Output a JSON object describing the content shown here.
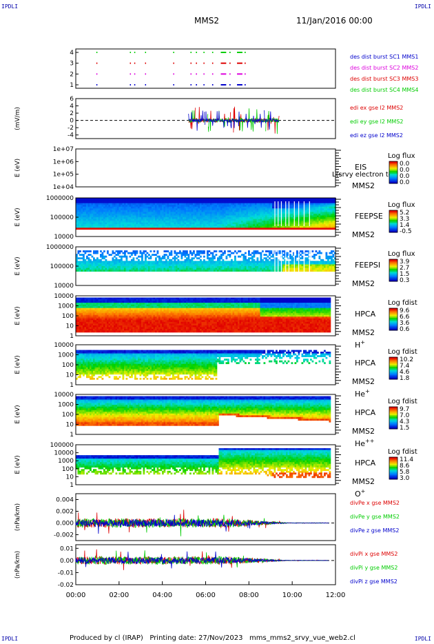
{
  "header": {
    "left_tag": "IPDLI",
    "right_tag": "IPDLI",
    "mission": "MMS2",
    "date": "11/Jan/2016 00:00"
  },
  "footer": {
    "text": "Produced by cl (IRAP)   Printing date: 27/Nov/2023   mms_mms2_srvy_vue_web2.cl",
    "left_tag": "IPDLI",
    "right_tag": "IPDLI"
  },
  "colors": {
    "red": "#dd0000",
    "green": "#00cc00",
    "blue": "#0000cc",
    "magenta": "#dd00dd"
  },
  "chart_data": {
    "type": "multi-panel spectrogram and line",
    "x_axis": {
      "range": [
        "00:00",
        "12:00"
      ],
      "tick_labels": [
        "00:00",
        "02:00",
        "04:00",
        "06:00",
        "08:00",
        "10:00",
        "12:00"
      ]
    },
    "panels": [
      {
        "type": "scatter",
        "id": "burst",
        "y_ticks": [
          "4",
          "3",
          "2",
          "1"
        ],
        "y_label": "",
        "series": [
          {
            "name": "des dist burst SC1 MMS1",
            "level": 1,
            "color": "#0000cc"
          },
          {
            "name": "des dist burst SC2 MMS2",
            "level": 2,
            "color": "#dd00dd"
          },
          {
            "name": "des dist burst SC3 MMS3",
            "level": 3,
            "color": "#dd0000"
          },
          {
            "name": "des dist burst SC4 MMS4",
            "level": 4,
            "color": "#00cc00"
          }
        ],
        "burst_intervals_hours": [
          [
            0.95,
            0.98
          ],
          [
            2.5,
            2.52
          ],
          [
            2.7,
            2.72
          ],
          [
            3.2,
            3.22
          ],
          [
            4.5,
            4.52
          ],
          [
            5.3,
            5.32
          ],
          [
            5.55,
            5.6
          ],
          [
            5.9,
            5.93
          ],
          [
            6.3,
            6.35
          ],
          [
            6.7,
            6.95
          ],
          [
            7.1,
            7.15
          ],
          [
            7.45,
            7.7
          ],
          [
            7.8,
            7.85
          ]
        ]
      },
      {
        "type": "line",
        "id": "efield",
        "y_label": "(mV/m)",
        "y_ticks": [
          "6",
          "4",
          "2",
          "0",
          "-2",
          "-4"
        ],
        "ylim": [
          -5,
          6
        ],
        "dashed_zero": true,
        "active_range_hours": [
          5.2,
          9.4
        ],
        "series": [
          {
            "name": "edi ex gse l2 MMS2",
            "color": "#dd0000"
          },
          {
            "name": "edi ey gse l2 MMS2",
            "color": "#00cc00"
          },
          {
            "name": "edi ez gse l2 MMS2",
            "color": "#0000cc"
          }
        ]
      },
      {
        "type": "heatmap",
        "id": "eis",
        "y_label": "E (eV)",
        "y_ticks": [
          "1e+07",
          "1e+06",
          "1e+05",
          "1e+04"
        ],
        "side_labels": [
          "EIS",
          "MMS2"
        ],
        "overlay_text": "L(srvy electron to",
        "colorbar_title": "Log flux",
        "colorbar_ticks": [
          "0.0",
          "0.0",
          "0.0",
          "0.0"
        ],
        "empty": true
      },
      {
        "type": "heatmap",
        "id": "feeps-e",
        "y_label": "E (eV)",
        "y_ticks": [
          "1000000",
          "100000",
          "10000"
        ],
        "side_labels": [
          "FEEPSE",
          "MMS2"
        ],
        "colorbar_title": "Log flux",
        "colorbar_ticks": [
          "5.2",
          "3.3",
          "1.4",
          "-0.5"
        ]
      },
      {
        "type": "heatmap",
        "id": "feeps-i",
        "y_label": "E (eV)",
        "y_ticks": [
          "1000000",
          "100000",
          "10000"
        ],
        "side_labels": [
          "FEEPSI",
          "MMS2"
        ],
        "colorbar_title": "Log flux",
        "colorbar_ticks": [
          "3.9",
          "2.7",
          "1.5",
          "0.3"
        ]
      },
      {
        "type": "heatmap",
        "id": "hpca-h",
        "y_label": "E (eV)",
        "y_ticks": [
          "10000",
          "1000",
          "100",
          "10",
          "1"
        ],
        "side_labels": [
          "HPCA",
          "MMS2"
        ],
        "species": "H",
        "species_charge": "+",
        "colorbar_title": "Log fdist",
        "colorbar_ticks": [
          "9.6",
          "6.6",
          "3.6",
          "0.6"
        ]
      },
      {
        "type": "heatmap",
        "id": "hpca-he1",
        "y_label": "E (eV)",
        "y_ticks": [
          "10000",
          "1000",
          "100",
          "10",
          "1"
        ],
        "side_labels": [
          "HPCA",
          "MMS2"
        ],
        "species": "He",
        "species_charge": "+",
        "colorbar_title": "Log fdist",
        "colorbar_ticks": [
          "10.2",
          "7.4",
          "4.6",
          "1.8"
        ]
      },
      {
        "type": "heatmap",
        "id": "hpca-he2",
        "y_label": "E (eV)",
        "y_ticks": [
          "10000",
          "1000",
          "100",
          "10",
          "1"
        ],
        "side_labels": [
          "HPCA",
          "MMS2"
        ],
        "species": "He",
        "species_charge": "++",
        "colorbar_title": "Log fdist",
        "colorbar_ticks": [
          "9.7",
          "7.0",
          "4.3",
          "1.5"
        ]
      },
      {
        "type": "heatmap",
        "id": "hpca-o",
        "y_label": "E (eV)",
        "y_ticks": [
          "100000",
          "10000",
          "1000",
          "100",
          "10",
          "1"
        ],
        "side_labels": [
          "HPCA",
          "MMS2"
        ],
        "species": "O",
        "species_charge": "+",
        "colorbar_title": "Log fdist",
        "colorbar_ticks": [
          "11.4",
          "8.6",
          "5.8",
          "3.0"
        ]
      },
      {
        "type": "line",
        "id": "divpe",
        "y_label": "(nPa/km)",
        "y_ticks": [
          "0.004",
          "0.002",
          "0.000",
          "-0.002"
        ],
        "ylim": [
          -0.003,
          0.005
        ],
        "dashed_zero": true,
        "series": [
          {
            "name": "divPe x gse MMS2",
            "color": "#dd0000"
          },
          {
            "name": "divPe y gse MMS2",
            "color": "#00cc00"
          },
          {
            "name": "divPe z gse MMS2",
            "color": "#0000cc"
          }
        ]
      },
      {
        "type": "line",
        "id": "divpi",
        "y_label": "(nPa/km)",
        "y_ticks": [
          "0.01",
          "0.00",
          "-0.01",
          "-0.02"
        ],
        "ylim": [
          -0.02,
          0.013
        ],
        "dashed_zero": true,
        "series": [
          {
            "name": "divPi x gse MMS2",
            "color": "#dd0000"
          },
          {
            "name": "divPi y gse MMS2",
            "color": "#00cc00"
          },
          {
            "name": "divPi z gse MMS2",
            "color": "#0000cc"
          }
        ]
      }
    ]
  }
}
